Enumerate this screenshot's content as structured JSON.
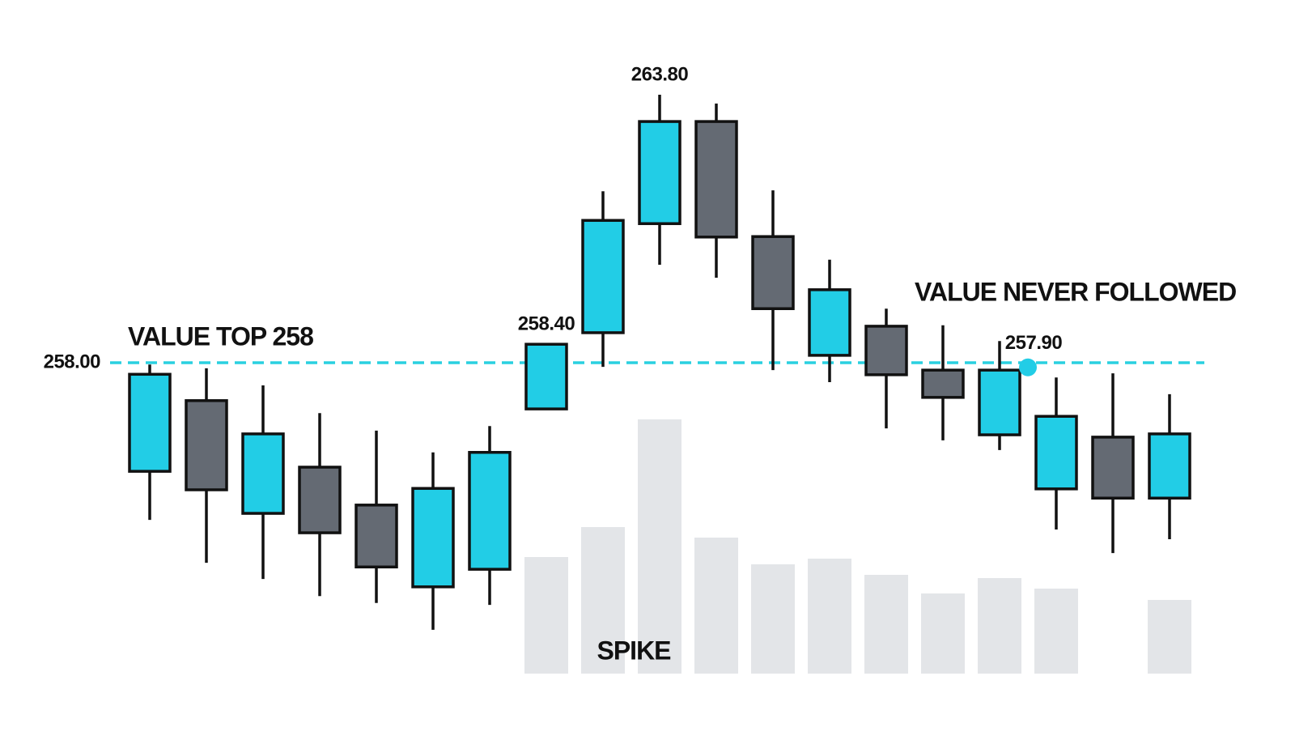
{
  "chart_data": {
    "type": "candlestick",
    "open": [
      255.65,
      257.18,
      254.74,
      255.74,
      254.92,
      253.15,
      253.53,
      257.0,
      258.65,
      261.01,
      263.22,
      260.73,
      258.16,
      258.79,
      257.84,
      256.44,
      255.27,
      256.39,
      255.07
    ],
    "high": [
      257.96,
      257.88,
      257.51,
      256.91,
      256.53,
      256.06,
      256.63,
      258.4,
      261.71,
      263.8,
      263.61,
      261.73,
      260.23,
      259.17,
      258.81,
      258.47,
      257.68,
      257.77,
      257.32
    ],
    "low": [
      254.6,
      253.67,
      253.32,
      252.95,
      252.8,
      252.22,
      252.76,
      257.0,
      257.91,
      260.12,
      259.84,
      257.84,
      257.58,
      256.58,
      256.32,
      256.11,
      254.39,
      253.88,
      254.18
    ],
    "close": [
      257.75,
      255.25,
      256.46,
      254.32,
      253.58,
      255.28,
      256.06,
      258.4,
      261.08,
      263.22,
      260.72,
      259.17,
      259.58,
      257.74,
      257.25,
      257.84,
      256.84,
      255.07,
      256.46
    ],
    "high_labels": [
      null,
      null,
      null,
      null,
      null,
      null,
      null,
      "258.40",
      null,
      "263.80",
      null,
      null,
      null,
      null,
      null,
      null,
      null,
      null,
      null
    ],
    "volume": [
      null,
      null,
      null,
      null,
      null,
      null,
      null,
      144,
      181,
      314,
      168,
      135,
      142,
      122,
      99,
      118,
      105,
      null,
      91
    ],
    "ylim": [
      251.5,
      265
    ],
    "y2lim": [
      0,
      350
    ],
    "up_color": "#22cde6",
    "down_color": "#646a73",
    "volume_color": "#e3e5e8",
    "reference_line": {
      "value": 258,
      "label": "258.00",
      "color": "#2ad0e0"
    },
    "marker": {
      "value": 257.9,
      "label": "257.90",
      "color": "#22cde6"
    },
    "annotations": [
      "VALUE TOP 258",
      "VALUE NEVER FOLLOWED",
      "SPIKE"
    ]
  }
}
